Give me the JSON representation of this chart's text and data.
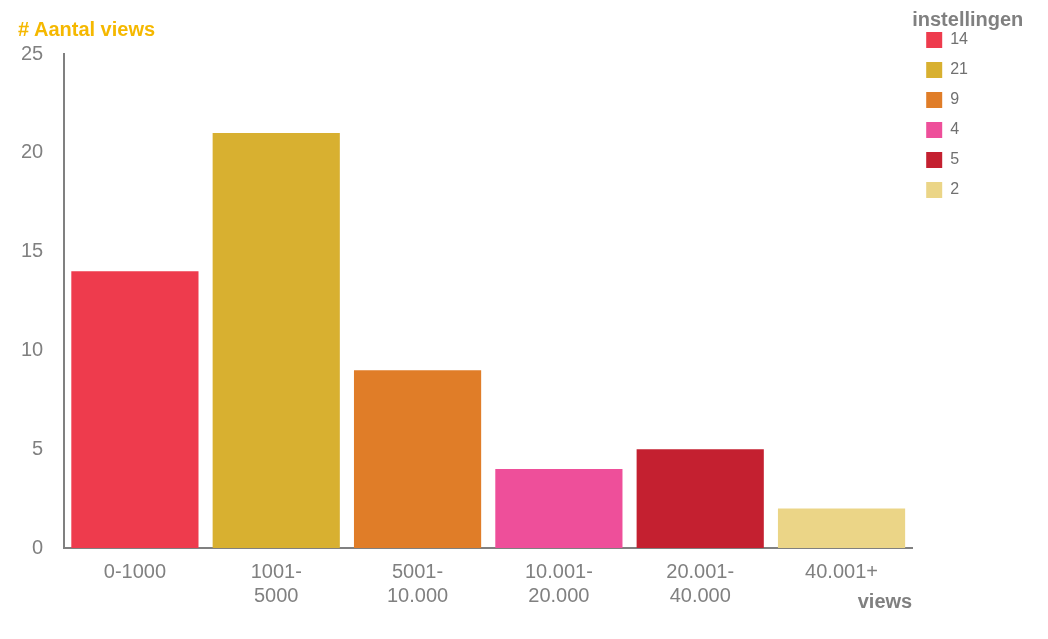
{
  "chart_data": {
    "type": "bar",
    "title": "# Aantal views",
    "xlabel": "views",
    "legend_title": "instellingen",
    "legend": "top right",
    "categories": [
      "0-1000",
      "1001-5000",
      "5001-10.000",
      "10.001-20.000",
      "20.001-40.000",
      "40.001+"
    ],
    "series": [
      {
        "name": "14",
        "color": "#ee3b4d",
        "values": [
          14,
          null,
          null,
          null,
          null,
          null
        ]
      },
      {
        "name": "21",
        "color": "#d8b030",
        "values": [
          null,
          21,
          null,
          null,
          null,
          null
        ]
      },
      {
        "name": "9",
        "color": "#e07d28",
        "values": [
          null,
          null,
          9,
          null,
          null,
          null
        ]
      },
      {
        "name": "4",
        "color": "#ee4f9a",
        "values": [
          null,
          null,
          null,
          4,
          null,
          null
        ]
      },
      {
        "name": "5",
        "color": "#c42030",
        "values": [
          null,
          null,
          null,
          null,
          5,
          null
        ]
      },
      {
        "name": "2",
        "color": "#ebd587",
        "values": [
          null,
          null,
          null,
          null,
          null,
          2
        ]
      }
    ],
    "ylim": [
      0,
      25
    ],
    "yticks": [
      0,
      5,
      10,
      15,
      20,
      25
    ],
    "grid": false
  }
}
